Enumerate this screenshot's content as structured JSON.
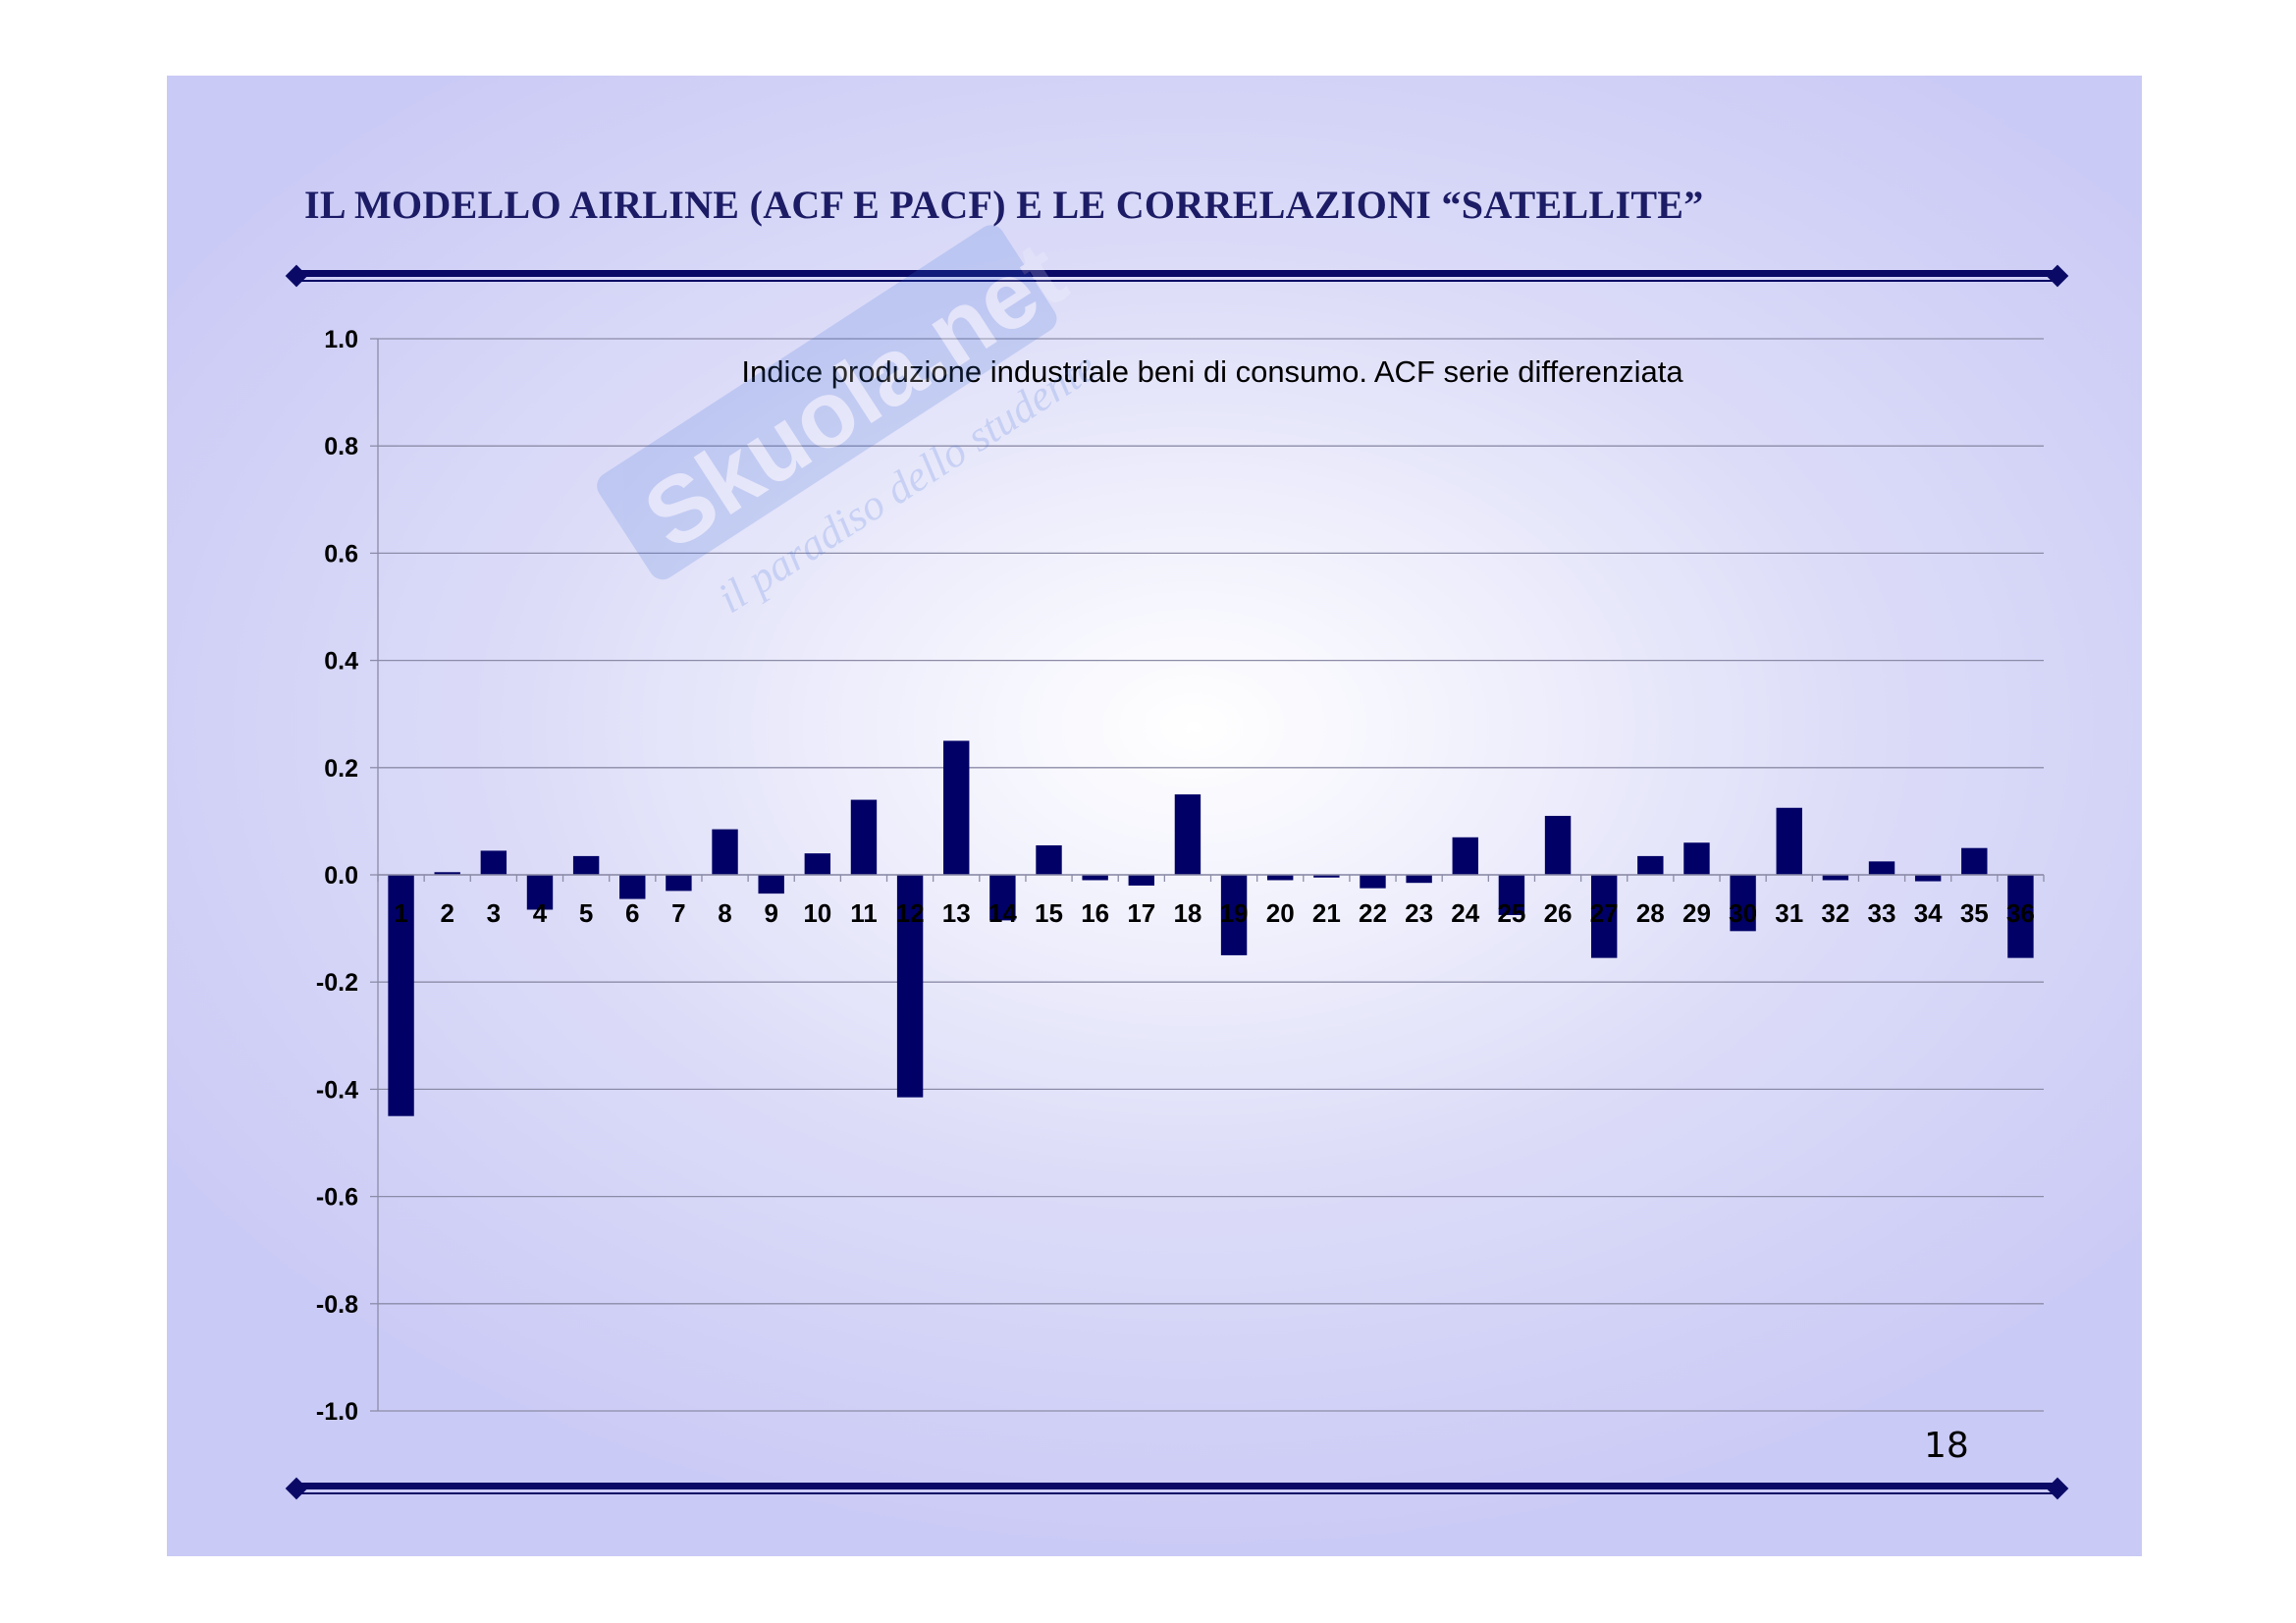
{
  "slide": {
    "title": "IL MODELLO AIRLINE (ACF E PACF) E LE CORRELAZIONI “SATELLITE”",
    "page_number": "18",
    "watermark_text": "Skuola.net",
    "watermark_tagline": "il paradiso dello studente"
  },
  "colors": {
    "bar": "#000066",
    "rule": "#0a0a66",
    "title": "#1c1c66",
    "gridline": "#8c8ca8"
  },
  "chart_data": {
    "type": "bar",
    "title": "Indice produzione industriale beni di consumo. ACF serie differenziata",
    "xlabel": "",
    "ylabel": "",
    "ylim": [
      -1.0,
      1.0
    ],
    "yticks": [
      "1.0",
      "0.8",
      "0.6",
      "0.4",
      "0.2",
      "0.0",
      "-0.2",
      "-0.4",
      "-0.6",
      "-0.8",
      "-1.0"
    ],
    "grid": true,
    "legend": "none",
    "categories": [
      "1",
      "2",
      "3",
      "4",
      "5",
      "6",
      "7",
      "8",
      "9",
      "10",
      "11",
      "12",
      "13",
      "14",
      "15",
      "16",
      "17",
      "18",
      "19",
      "20",
      "21",
      "22",
      "23",
      "24",
      "25",
      "26",
      "27",
      "28",
      "29",
      "30",
      "31",
      "32",
      "33",
      "34",
      "35",
      "36"
    ],
    "values": [
      -0.45,
      0.005,
      0.045,
      -0.065,
      0.035,
      -0.045,
      -0.03,
      0.085,
      -0.035,
      0.04,
      0.14,
      -0.415,
      0.25,
      -0.085,
      0.055,
      -0.01,
      -0.02,
      0.15,
      -0.15,
      -0.01,
      -0.005,
      -0.025,
      -0.015,
      0.07,
      -0.075,
      0.11,
      -0.155,
      0.035,
      0.06,
      -0.105,
      0.125,
      -0.01,
      0.025,
      -0.012,
      0.05,
      -0.155
    ]
  }
}
